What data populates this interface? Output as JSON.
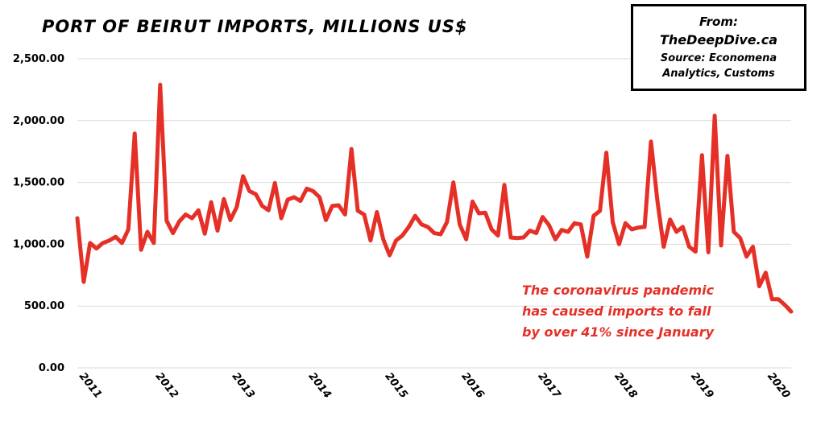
{
  "chart_data": {
    "type": "line",
    "title": "PORT OF BEIRUT IMPORTS, MILLIONS US$",
    "xlabel": "",
    "ylabel": "",
    "ylim": [
      0,
      2500
    ],
    "yticks": [
      0,
      500,
      1000,
      1500,
      2000,
      2500
    ],
    "ytick_labels": [
      "0.00",
      "500.00",
      "1,000.00",
      "1,500.00",
      "2,000.00",
      "2,500.00"
    ],
    "xticks": [
      "2011",
      "2012",
      "2013",
      "2014",
      "2015",
      "2016",
      "2017",
      "2018",
      "2019",
      "2020"
    ],
    "x_start": "2011-01",
    "grid": true,
    "series": [
      {
        "name": "",
        "color": "#e53027",
        "values": [
          1210,
          695,
          1010,
          965,
          1010,
          1030,
          1060,
          1010,
          1120,
          1895,
          955,
          1100,
          1010,
          2290,
          1190,
          1090,
          1185,
          1240,
          1210,
          1275,
          1085,
          1340,
          1110,
          1365,
          1195,
          1300,
          1550,
          1430,
          1405,
          1310,
          1275,
          1495,
          1210,
          1360,
          1380,
          1350,
          1450,
          1430,
          1380,
          1195,
          1310,
          1315,
          1240,
          1770,
          1270,
          1240,
          1030,
          1260,
          1040,
          910,
          1030,
          1070,
          1140,
          1230,
          1160,
          1140,
          1090,
          1080,
          1180,
          1500,
          1160,
          1040,
          1345,
          1250,
          1255,
          1120,
          1070,
          1480,
          1055,
          1050,
          1055,
          1110,
          1090,
          1220,
          1155,
          1040,
          1115,
          1100,
          1170,
          1160,
          900,
          1230,
          1270,
          1740,
          1180,
          1000,
          1170,
          1120,
          1135,
          1140,
          1830,
          1355,
          980,
          1200,
          1100,
          1140,
          980,
          940,
          1720,
          935,
          2040,
          990,
          1715,
          1100,
          1050,
          900,
          980,
          660,
          770,
          555,
          555,
          510,
          455
        ]
      }
    ],
    "annotation": [
      "The coronavirus pandemic",
      "has caused imports to fall",
      "by over 41% since January"
    ]
  },
  "source_box": {
    "line1": "From:",
    "line2": "TheDeepDive.ca",
    "line3": "Source: Economena",
    "line4": "Analytics, Customs"
  }
}
